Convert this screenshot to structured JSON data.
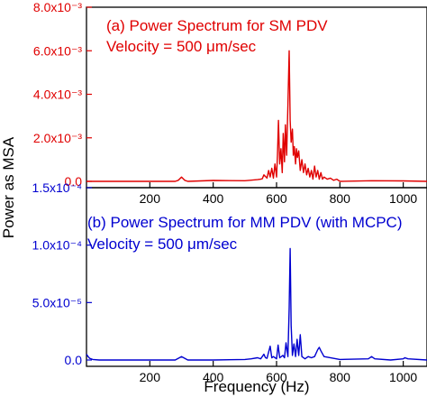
{
  "colors": {
    "panel_a": "#e00000",
    "panel_b": "#0000d0",
    "axis": "#000000",
    "background": "#ffffff"
  },
  "shared": {
    "xlabel": "Frequency (Hz)",
    "ylabel": "Power as MSA"
  },
  "panel_a": {
    "title_line1": "(a) Power Spectrum for SM PDV",
    "title_line2": "Velocity = 500 μm/sec",
    "ytick_labels": [
      "0.0",
      "2.0x10⁻³",
      "4.0x10⁻³",
      "6.0x10⁻³",
      "8.0x10⁻³"
    ]
  },
  "panel_b": {
    "title_line1": "(b) Power Spectrum for MM PDV (with MCPC)",
    "title_line2": "Velocity = 500 μm/sec",
    "ytick_labels": [
      "0.0",
      "5.0x10⁻⁵",
      "1.0x10⁻⁴",
      "1.5x10⁻⁴"
    ]
  },
  "xtick_labels": [
    "200",
    "400",
    "600",
    "800",
    "1000"
  ],
  "chart_data": [
    {
      "type": "line",
      "title": "(a) Power Spectrum for SM PDV",
      "subtitle": "Velocity = 500 μm/sec",
      "xlabel": "Frequency (Hz)",
      "ylabel": "Power as MSA",
      "xlim": [
        0,
        1075
      ],
      "ylim": [
        0,
        0.008
      ],
      "xticks": [
        200,
        400,
        600,
        800,
        1000
      ],
      "yticks": [
        0,
        0.002,
        0.004,
        0.006,
        0.008
      ],
      "grid": false,
      "series": [
        {
          "color": "#e00000",
          "x": [
            0,
            100,
            200,
            280,
            290,
            300,
            310,
            320,
            400,
            500,
            540,
            550,
            555,
            560,
            570,
            575,
            580,
            585,
            590,
            595,
            600,
            603,
            606,
            610,
            614,
            618,
            621,
            625,
            628,
            632,
            636,
            640,
            643,
            646,
            650,
            653,
            656,
            660,
            663,
            666,
            670,
            675,
            680,
            685,
            690,
            695,
            700,
            705,
            710,
            715,
            720,
            725,
            730,
            735,
            740,
            745,
            750,
            760,
            770,
            780,
            790,
            800,
            900,
            1000,
            1075
          ],
          "y": [
            0,
            0,
            0,
            0,
            5e-05,
            0.0002,
            5e-05,
            0,
            4e-05,
            3e-05,
            8e-05,
            0.0001,
            0.00012,
            0.0003,
            0.00015,
            0.0005,
            0.0002,
            0.0006,
            0.00015,
            0.0008,
            0.0002,
            0.0012,
            0.0028,
            0.0008,
            0.0015,
            0.0004,
            0.0022,
            0.0009,
            0.0026,
            0.0012,
            0.0035,
            0.006,
            0.0028,
            0.0018,
            0.0024,
            0.0012,
            0.0016,
            0.0008,
            0.0015,
            0.0011,
            0.0014,
            0.0005,
            0.001,
            0.0004,
            0.0008,
            0.0003,
            0.0006,
            0.0002,
            0.0005,
            0.0001,
            0.0007,
            0.0002,
            0.0005,
            0.0001,
            0.0004,
            0.0001,
            0.0002,
            0.0001,
            0.00015,
            5e-05,
            0.0001,
            0,
            3e-05,
            2e-05,
            0
          ]
        }
      ]
    },
    {
      "type": "line",
      "title": "(b) Power Spectrum for MM PDV (with MCPC)",
      "subtitle": "Velocity = 500 μm/sec",
      "xlabel": "Frequency (Hz)",
      "ylabel": "Power as MSA",
      "xlim": [
        0,
        1075
      ],
      "ylim": [
        0,
        0.00015
      ],
      "xticks": [
        200,
        400,
        600,
        800,
        1000
      ],
      "yticks": [
        0,
        5e-05,
        0.0001,
        0.00015
      ],
      "grid": false,
      "series": [
        {
          "color": "#0000d0",
          "x": [
            0,
            5,
            10,
            20,
            40,
            100,
            200,
            280,
            290,
            300,
            310,
            320,
            400,
            500,
            520,
            540,
            550,
            560,
            565,
            570,
            580,
            585,
            590,
            600,
            605,
            610,
            620,
            625,
            630,
            636,
            640,
            643,
            646,
            650,
            655,
            660,
            665,
            670,
            675,
            680,
            690,
            700,
            710,
            720,
            730,
            735,
            740,
            750,
            800,
            890,
            900,
            910,
            960,
            1000,
            1005,
            1015,
            1075
          ],
          "y": [
            5e-06,
            3e-06,
            1.5e-06,
            5e-07,
            0,
            0,
            0,
            0,
            1.5e-06,
            3e-06,
            1.5e-06,
            0,
            0,
            5e-07,
            1e-06,
            2e-06,
            1e-06,
            5e-06,
            2e-06,
            1.5e-06,
            1.2e-05,
            2e-06,
            3e-06,
            1e-06,
            1.3e-05,
            2e-06,
            4e-06,
            2e-06,
            1.5e-05,
            3e-06,
            4.5e-05,
            9.7e-05,
            3e-05,
            4e-06,
            1.4e-05,
            3e-06,
            1.8e-05,
            4e-06,
            2.2e-05,
            3e-06,
            1e-06,
            3e-06,
            2e-06,
            3e-06,
            9e-06,
            1.1e-05,
            8e-06,
            3e-06,
            5e-07,
            1e-06,
            3e-06,
            1e-06,
            0,
            1e-06,
            2e-06,
            1e-06,
            0
          ]
        }
      ]
    }
  ]
}
